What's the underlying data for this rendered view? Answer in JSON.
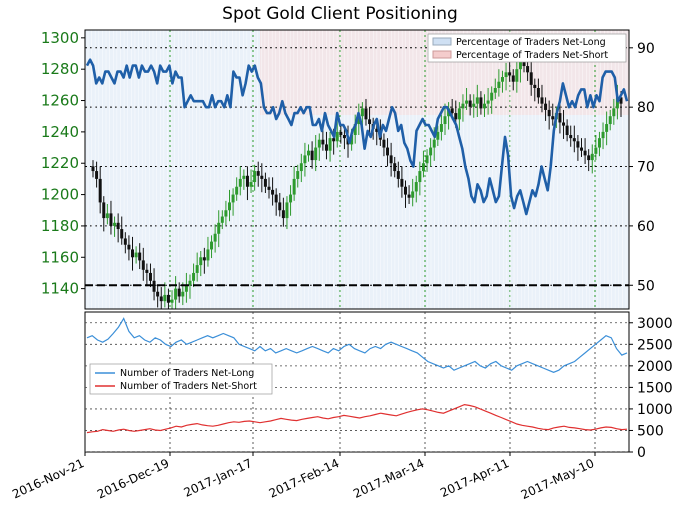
{
  "title": "Spot Gold Client Positioning",
  "chart_data": [
    {
      "type": "candlestick+line",
      "panel": "top",
      "left_axis": {
        "ticks": [
          1140,
          1160,
          1180,
          1200,
          1220,
          1240,
          1260,
          1280,
          1300
        ],
        "range": [
          1127,
          1305
        ]
      },
      "right_axis": {
        "ticks": [
          50,
          60,
          70,
          80,
          90
        ],
        "range": [
          46,
          93
        ]
      },
      "x_tick_labels": [
        "2016-Nov-21",
        "2016-Dec-19",
        "2017-Jan-17",
        "2017-Feb-14",
        "2017-Mar-14",
        "2017-Apr-11",
        "2017-May-10"
      ],
      "legend": [
        {
          "label": "Percentage of Traders Net-Long",
          "color": "#cfe0f3"
        },
        {
          "label": "Percentage of Traders Net-Short",
          "color": "#f4cccc"
        }
      ],
      "reference_line": 50,
      "net_long_pct": [
        87,
        88,
        87,
        84,
        85,
        84,
        86,
        86,
        85,
        84,
        86,
        86,
        85,
        87,
        85,
        87,
        87,
        85,
        87,
        86,
        86,
        87,
        86,
        84,
        87,
        86,
        86,
        87,
        84,
        86,
        85,
        85,
        80,
        81,
        82,
        81,
        81,
        81,
        81,
        80,
        80,
        82,
        80,
        81,
        81,
        80,
        82,
        80,
        86,
        85,
        85,
        82,
        84,
        87,
        86,
        87,
        85,
        84,
        80,
        79,
        79,
        80,
        78,
        79,
        81,
        79,
        78,
        77,
        79,
        79,
        80,
        79,
        80,
        80,
        77,
        77,
        78,
        76,
        79,
        77,
        76,
        75,
        79,
        77,
        77,
        76,
        74,
        76,
        77,
        79,
        77,
        73,
        76,
        75,
        77,
        78,
        75,
        77,
        76,
        78,
        80,
        79,
        76,
        77,
        74,
        73,
        71,
        70,
        76,
        77,
        78,
        77,
        77,
        76,
        75,
        78,
        79,
        80,
        80,
        79,
        78,
        77,
        75,
        73,
        70,
        68,
        65,
        64,
        67,
        66,
        64,
        65,
        68,
        66,
        64,
        65,
        70,
        75,
        72,
        65,
        63,
        65,
        66,
        64,
        62,
        64,
        66,
        65,
        67,
        70,
        68,
        66,
        70,
        76,
        79,
        81,
        84,
        82,
        80,
        81,
        80,
        82,
        83,
        83,
        80,
        82,
        80,
        82,
        81,
        85,
        86,
        86,
        86,
        85,
        81,
        82,
        83,
        81
      ],
      "price_candles_close": [
        1215,
        1210,
        1195,
        1185,
        1188,
        1180,
        1182,
        1178,
        1172,
        1168,
        1165,
        1160,
        1163,
        1158,
        1152,
        1150,
        1145,
        1138,
        1135,
        1132,
        1136,
        1131,
        1133,
        1140,
        1135,
        1138,
        1142,
        1145,
        1150,
        1155,
        1160,
        1158,
        1165,
        1170,
        1175,
        1182,
        1186,
        1190,
        1195,
        1200,
        1205,
        1210,
        1212,
        1205,
        1208,
        1215,
        1212,
        1210,
        1205,
        1203,
        1200,
        1195,
        1190,
        1185,
        1195,
        1200,
        1210,
        1215,
        1220,
        1225,
        1228,
        1222,
        1230,
        1235,
        1232,
        1228,
        1236,
        1234,
        1240,
        1238,
        1236,
        1232,
        1238,
        1245,
        1250,
        1255,
        1248,
        1245,
        1242,
        1240,
        1235,
        1230,
        1225,
        1220,
        1215,
        1210,
        1205,
        1200,
        1198,
        1202,
        1208,
        1215,
        1220,
        1225,
        1230,
        1235,
        1240,
        1245,
        1250,
        1255,
        1252,
        1248,
        1255,
        1258,
        1260,
        1256,
        1258,
        1262,
        1255,
        1258,
        1260,
        1265,
        1268,
        1272,
        1275,
        1278,
        1276,
        1272,
        1280,
        1285,
        1282,
        1278,
        1270,
        1268,
        1262,
        1258,
        1254,
        1250,
        1248,
        1252,
        1246,
        1244,
        1238,
        1236,
        1234,
        1230,
        1228,
        1225,
        1222,
        1226,
        1230,
        1236,
        1240,
        1245,
        1250,
        1255,
        1262,
        1258
      ]
    },
    {
      "type": "line",
      "panel": "bottom",
      "y_ticks": [
        0,
        500,
        1000,
        1500,
        2000,
        2500,
        3000
      ],
      "y_range": [
        0,
        3250
      ],
      "series": [
        {
          "name": "Number of Traders Net-Long",
          "color": "#3b8fd8",
          "values": [
            2650,
            2700,
            2600,
            2550,
            2620,
            2750,
            2900,
            3100,
            2800,
            2650,
            2700,
            2600,
            2550,
            2650,
            2600,
            2500,
            2450,
            2550,
            2600,
            2500,
            2550,
            2600,
            2650,
            2700,
            2650,
            2700,
            2750,
            2700,
            2650,
            2500,
            2450,
            2400,
            2350,
            2450,
            2350,
            2400,
            2300,
            2350,
            2400,
            2350,
            2300,
            2350,
            2400,
            2450,
            2400,
            2350,
            2300,
            2400,
            2350,
            2450,
            2500,
            2400,
            2350,
            2300,
            2400,
            2450,
            2400,
            2500,
            2550,
            2500,
            2450,
            2400,
            2350,
            2300,
            2200,
            2100,
            2050,
            2000,
            1950,
            2000,
            1900,
            1950,
            2000,
            2050,
            2100,
            2000,
            1950,
            2050,
            2100,
            2000,
            1950,
            1900,
            2000,
            2050,
            2100,
            2050,
            2000,
            1950,
            1900,
            1850,
            1900,
            2000,
            2050,
            2100,
            2200,
            2300,
            2400,
            2500,
            2600,
            2700,
            2650,
            2400,
            2250,
            2300
          ]
        },
        {
          "name": "Number of Traders Net-Short",
          "color": "#e03030",
          "values": [
            450,
            470,
            480,
            520,
            500,
            480,
            510,
            530,
            500,
            480,
            500,
            520,
            540,
            510,
            500,
            530,
            560,
            600,
            580,
            620,
            640,
            660,
            630,
            610,
            600,
            620,
            650,
            680,
            700,
            690,
            710,
            720,
            700,
            680,
            700,
            720,
            750,
            780,
            760,
            740,
            730,
            760,
            780,
            800,
            820,
            790,
            770,
            800,
            820,
            850,
            830,
            810,
            790,
            820,
            840,
            870,
            900,
            880,
            860,
            840,
            880,
            920,
            950,
            980,
            1000,
            980,
            950,
            920,
            900,
            950,
            1000,
            1050,
            1100,
            1080,
            1050,
            1000,
            950,
            900,
            850,
            800,
            750,
            700,
            650,
            620,
            600,
            580,
            550,
            530,
            520,
            560,
            580,
            600,
            570,
            560,
            540,
            520,
            510,
            530,
            560,
            580,
            570,
            540,
            520,
            530
          ]
        }
      ]
    }
  ]
}
